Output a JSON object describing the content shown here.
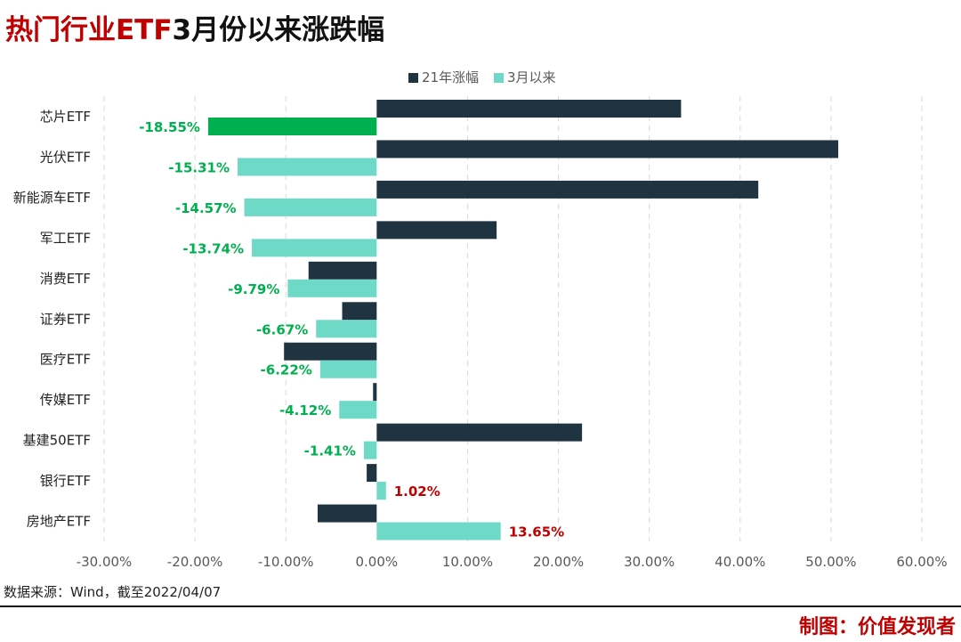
{
  "title_red": "热门行业ETF",
  "title_dark": "3月份以来涨跌幅",
  "colors": {
    "series_2021": "#1f3440",
    "series_march": "#6fd9c8",
    "highlight_bar": "#00b050",
    "neg_label": "#00b050",
    "pos_label": "#c00000",
    "grid": "#d9d9d9",
    "axis_text": "#595959"
  },
  "chart_data": {
    "type": "bar",
    "orientation": "horizontal",
    "categories": [
      "芯片ETF",
      "光伏ETF",
      "新能源车ETF",
      "军工ETF",
      "消费ETF",
      "证券ETF",
      "医疗ETF",
      "传媒ETF",
      "基建50ETF",
      "银行ETF",
      "房地产ETF"
    ],
    "series": [
      {
        "name": "21年涨幅",
        "values": [
          33.5,
          50.8,
          42.0,
          13.2,
          -7.5,
          -3.8,
          -10.2,
          -0.4,
          22.6,
          -1.1,
          -6.5
        ]
      },
      {
        "name": "3月以来",
        "values": [
          -18.55,
          -15.31,
          -14.57,
          -13.74,
          -9.79,
          -6.67,
          -6.22,
          -4.12,
          -1.41,
          1.02,
          13.65
        ],
        "data_labels": [
          "-18.55%",
          "-15.31%",
          "-14.57%",
          "-13.74%",
          "-9.79%",
          "-6.67%",
          "-6.22%",
          "-4.12%",
          "-1.41%",
          "1.02%",
          "13.65%"
        ]
      }
    ],
    "highlight_index": 0,
    "xlim": [
      -30,
      60
    ],
    "x_ticks": [
      -30,
      -20,
      -10,
      0,
      10,
      20,
      30,
      40,
      50,
      60
    ],
    "x_tick_labels": [
      "-30.00%",
      "-20.00%",
      "-10.00%",
      "0.00%",
      "10.00%",
      "20.00%",
      "30.00%",
      "40.00%",
      "50.00%",
      "60.00%"
    ],
    "grid": "vertical-dashed",
    "legend_position": "top"
  },
  "footer": {
    "source": "数据来源：Wind，截至2022/04/07",
    "credit": "制图：价值发现者"
  }
}
